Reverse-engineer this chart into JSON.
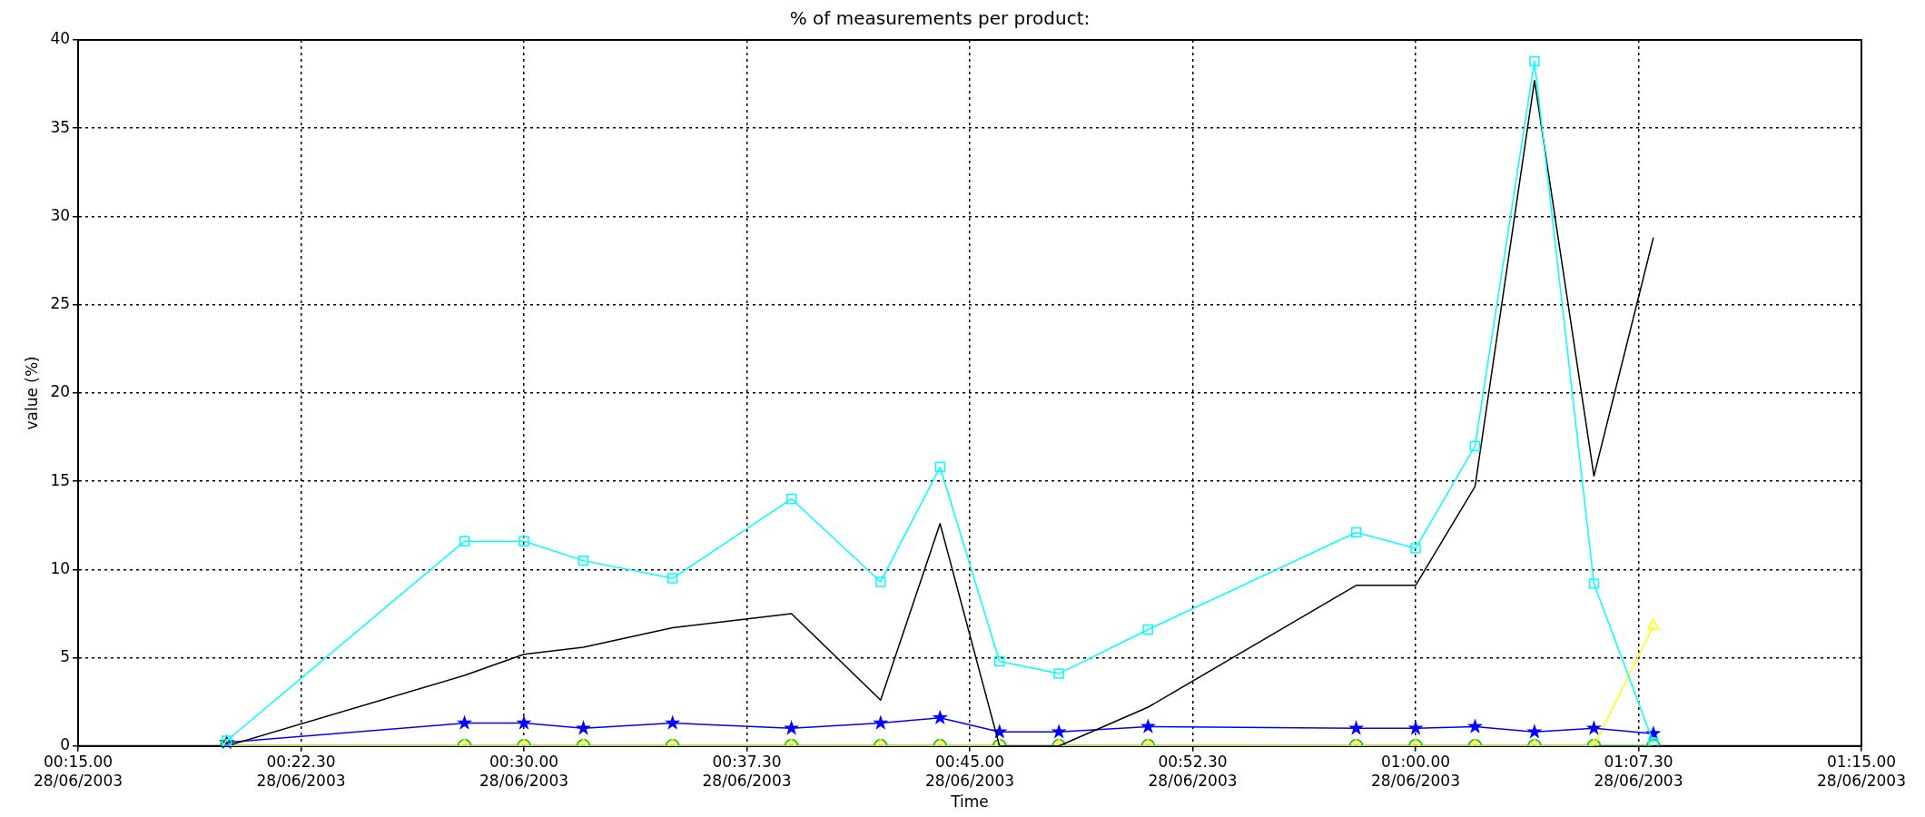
{
  "chart_data": {
    "type": "line",
    "title": "% of measurements per product:",
    "xlabel": "Time",
    "ylabel": "value (%)",
    "x": [
      "2003-06-28T00:20",
      "2003-06-28T00:28",
      "2003-06-28T00:30",
      "2003-06-28T00:32",
      "2003-06-28T00:35",
      "2003-06-28T00:39",
      "2003-06-28T00:42",
      "2003-06-28T00:44",
      "2003-06-28T00:46",
      "2003-06-28T00:48",
      "2003-06-28T00:51",
      "2003-06-28T00:58",
      "2003-06-28T01:00",
      "2003-06-28T01:02",
      "2003-06-28T01:04",
      "2003-06-28T01:06",
      "2003-06-28T01:08"
    ],
    "series": [
      {
        "color": "#00c000",
        "marker": "circle",
        "values": [
          0,
          0,
          0,
          0,
          0,
          0,
          0,
          0,
          0,
          0,
          0,
          0,
          0,
          0,
          0,
          0,
          0
        ]
      },
      {
        "color": "#ffff00",
        "marker": "triangle",
        "values": [
          0,
          0,
          0,
          0,
          0,
          0,
          0,
          0,
          0,
          0,
          0,
          0,
          0,
          0,
          0,
          0,
          6.8
        ]
      },
      {
        "color": "#0000ff",
        "marker": "star",
        "values": [
          0.2,
          1.3,
          1.3,
          1.0,
          1.3,
          1.0,
          1.3,
          1.6,
          0.8,
          0.8,
          1.1,
          1.0,
          1.0,
          1.1,
          0.8,
          1.0,
          0.7
        ]
      },
      {
        "color": "#000000",
        "marker": "none",
        "values": [
          0,
          4.0,
          5.2,
          5.6,
          6.7,
          7.5,
          2.6,
          12.6,
          0,
          0,
          2.2,
          9.1,
          9.1,
          14.7,
          37.7,
          15.3,
          28.8
        ]
      },
      {
        "color": "#00ffff",
        "marker": "square",
        "values": [
          0.3,
          11.6,
          11.6,
          10.5,
          9.5,
          14.0,
          9.3,
          15.8,
          4.8,
          4.1,
          6.6,
          12.1,
          11.2,
          17.0,
          38.8,
          9.2,
          0.2
        ]
      }
    ],
    "xlim": [
      "2003-06-28T00:15",
      "2003-06-28T01:15"
    ],
    "xticks": [
      {
        "value": "2003-06-28T00:15:00",
        "label": "00:15.00\n28/06/2003"
      },
      {
        "value": "2003-06-28T00:22:30",
        "label": "00:22.30\n28/06/2003"
      },
      {
        "value": "2003-06-28T00:30:00",
        "label": "00:30.00\n28/06/2003"
      },
      {
        "value": "2003-06-28T00:37:30",
        "label": "00:37.30\n28/06/2003"
      },
      {
        "value": "2003-06-28T00:45:00",
        "label": "00:45.00\n28/06/2003"
      },
      {
        "value": "2003-06-28T00:52:30",
        "label": "00:52.30\n28/06/2003"
      },
      {
        "value": "2003-06-28T01:00:00",
        "label": "01:00.00\n28/06/2003"
      },
      {
        "value": "2003-06-28T01:07:30",
        "label": "01:07.30\n28/06/2003"
      },
      {
        "value": "2003-06-28T01:15:00",
        "label": "01:15.00\n28/06/2003"
      }
    ],
    "ylim": [
      0,
      40
    ],
    "yticks": [
      0,
      5,
      10,
      15,
      20,
      25,
      30,
      35,
      40
    ],
    "grid": true,
    "legend": false,
    "line_style": "solid"
  }
}
